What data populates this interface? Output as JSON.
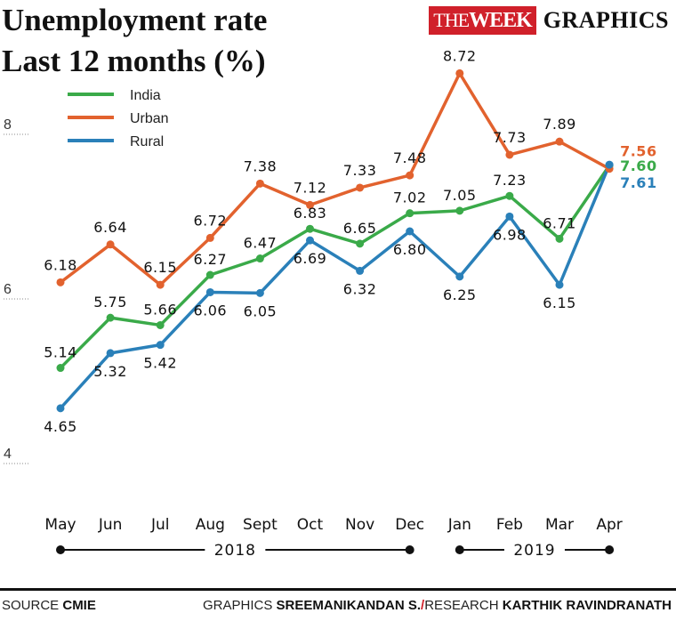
{
  "header": {
    "title_line1": "Unemployment rate",
    "title_line2": "Last 12 months (%)",
    "brand_the": "THE",
    "brand_week": "WEEK",
    "brand_graphics": "GRAPHICS"
  },
  "footer": {
    "source_label": "SOURCE",
    "source_value": "CMIE",
    "graphics_label": "GRAPHICS",
    "graphics_value": "SREEMANIKANDAN S.",
    "slash": "/",
    "research_label": "RESEARCH",
    "research_value": "KARTHIK RAVINDRANATH"
  },
  "chart_data": {
    "type": "line",
    "title": "Unemployment rate Last 12 months (%)",
    "categories": [
      "May",
      "Jun",
      "Jul",
      "Aug",
      "Sept",
      "Oct",
      "Nov",
      "Dec",
      "Jan",
      "Feb",
      "Mar",
      "Apr"
    ],
    "year_groups": [
      {
        "label": "2018",
        "from": "May",
        "to": "Dec"
      },
      {
        "label": "2019",
        "from": "Jan",
        "to": "Apr"
      }
    ],
    "yticks": [
      4,
      6,
      8
    ],
    "ylim": [
      3.2,
      9.1
    ],
    "legend_position": "top-left",
    "grid": false,
    "series": [
      {
        "name": "India",
        "color": "#3aaa49",
        "values": [
          5.14,
          5.75,
          5.66,
          6.27,
          6.47,
          6.83,
          6.65,
          7.02,
          7.05,
          7.23,
          6.71,
          7.6
        ],
        "labels": [
          "5.14",
          "5.75",
          "5.66",
          "6.27",
          "6.47",
          "6.83",
          "6.65",
          "7.02",
          "7.05",
          "7.23",
          "6.71",
          "7.60"
        ]
      },
      {
        "name": "Urban",
        "color": "#e2622e",
        "values": [
          6.18,
          6.64,
          6.15,
          6.72,
          7.38,
          7.12,
          7.33,
          7.48,
          8.72,
          7.73,
          7.89,
          7.56
        ],
        "labels": [
          "6.18",
          "6.64",
          "6.15",
          "6.72",
          "7.38",
          "7.12",
          "7.33",
          "7.48",
          "8.72",
          "7.73",
          "7.89",
          "7.56"
        ]
      },
      {
        "name": "Rural",
        "color": "#2a80b9",
        "values": [
          4.65,
          5.32,
          5.42,
          6.06,
          6.05,
          6.69,
          6.32,
          6.8,
          6.25,
          6.98,
          6.15,
          7.61
        ],
        "labels": [
          "4.65",
          "5.32",
          "5.42",
          "6.06",
          "6.05",
          "6.69",
          "6.32",
          "6.80",
          "6.25",
          "6.98",
          "6.15",
          "7.61"
        ]
      }
    ]
  }
}
